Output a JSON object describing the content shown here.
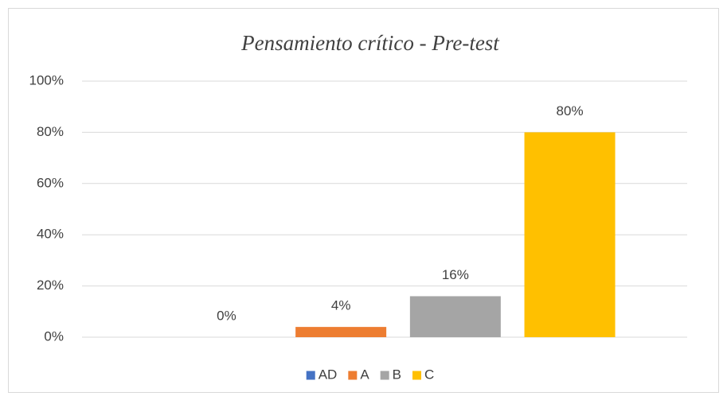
{
  "chart_data": {
    "type": "bar",
    "title": "Pensamiento crítico - Pre-test",
    "series": [
      {
        "name": "AD",
        "color": "#4472c4",
        "values": [
          0
        ],
        "value_labels": [
          "0%"
        ]
      },
      {
        "name": "A",
        "color": "#ed7d31",
        "values": [
          4
        ],
        "value_labels": [
          "4%"
        ]
      },
      {
        "name": "B",
        "color": "#a5a5a5",
        "values": [
          16
        ],
        "value_labels": [
          "16%"
        ]
      },
      {
        "name": "C",
        "color": "#ffc000",
        "values": [
          80
        ],
        "value_labels": [
          "80%"
        ]
      }
    ],
    "ylim": [
      0,
      100
    ],
    "yticks": [
      {
        "value": 0,
        "label": "0%"
      },
      {
        "value": 20,
        "label": "20%"
      },
      {
        "value": 40,
        "label": "40%"
      },
      {
        "value": 60,
        "label": "60%"
      },
      {
        "value": 80,
        "label": "80%"
      },
      {
        "value": 100,
        "label": "100%"
      }
    ],
    "grid": true,
    "legend": "bottom"
  }
}
